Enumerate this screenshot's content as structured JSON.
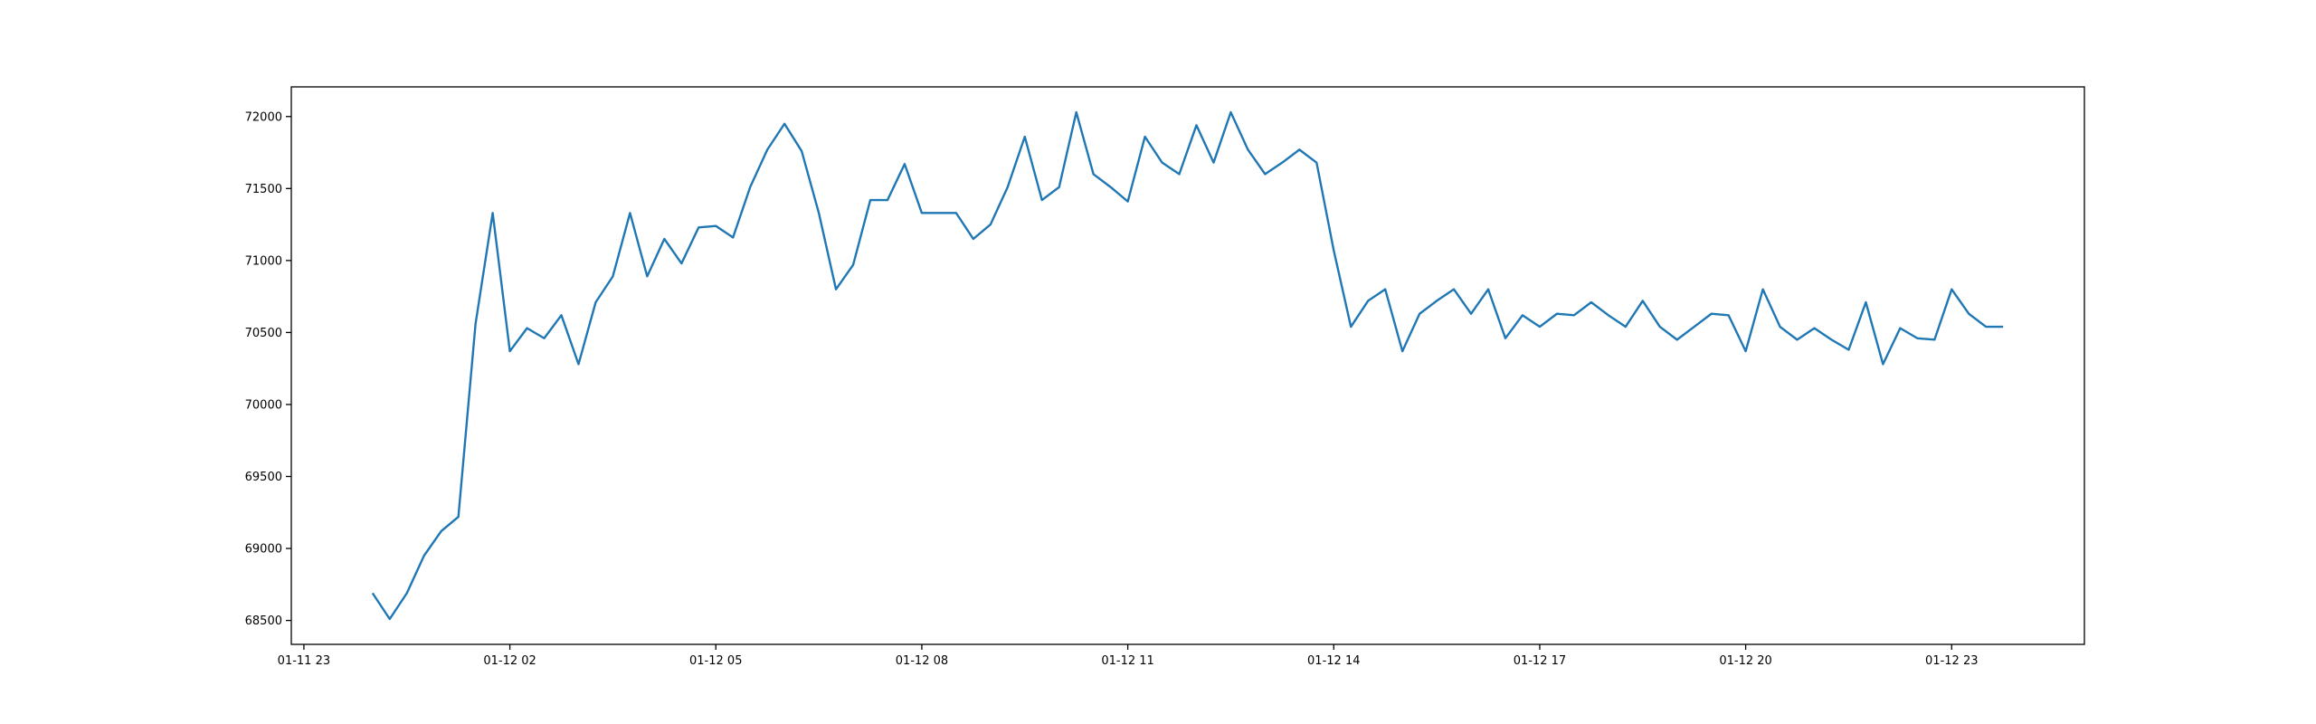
{
  "chart_data": {
    "type": "line",
    "x": [
      "01-12 00:00",
      "01-12 00:15",
      "01-12 00:30",
      "01-12 00:45",
      "01-12 01:00",
      "01-12 01:15",
      "01-12 01:30",
      "01-12 01:45",
      "01-12 02:00",
      "01-12 02:15",
      "01-12 02:30",
      "01-12 02:45",
      "01-12 03:00",
      "01-12 03:15",
      "01-12 03:30",
      "01-12 03:45",
      "01-12 04:00",
      "01-12 04:15",
      "01-12 04:30",
      "01-12 04:45",
      "01-12 05:00",
      "01-12 05:15",
      "01-12 05:30",
      "01-12 05:45",
      "01-12 06:00",
      "01-12 06:15",
      "01-12 06:30",
      "01-12 06:45",
      "01-12 07:00",
      "01-12 07:15",
      "01-12 07:30",
      "01-12 07:45",
      "01-12 08:00",
      "01-12 08:15",
      "01-12 08:30",
      "01-12 08:45",
      "01-12 09:00",
      "01-12 09:15",
      "01-12 09:30",
      "01-12 09:45",
      "01-12 10:00",
      "01-12 10:15",
      "01-12 10:30",
      "01-12 10:45",
      "01-12 11:00",
      "01-12 11:15",
      "01-12 11:30",
      "01-12 11:45",
      "01-12 12:00",
      "01-12 12:15",
      "01-12 12:30",
      "01-12 12:45",
      "01-12 13:00",
      "01-12 13:15",
      "01-12 13:30",
      "01-12 13:45",
      "01-12 14:00",
      "01-12 14:15",
      "01-12 14:30",
      "01-12 14:45",
      "01-12 15:00",
      "01-12 15:15",
      "01-12 15:30",
      "01-12 15:45",
      "01-12 16:00",
      "01-12 16:15",
      "01-12 16:30",
      "01-12 16:45",
      "01-12 17:00",
      "01-12 17:15",
      "01-12 17:30",
      "01-12 17:45",
      "01-12 18:00",
      "01-12 18:15",
      "01-12 18:30",
      "01-12 18:45",
      "01-12 19:00",
      "01-12 19:15",
      "01-12 19:30",
      "01-12 19:45",
      "01-12 20:00",
      "01-12 20:15",
      "01-12 20:30",
      "01-12 20:45",
      "01-12 21:00",
      "01-12 21:15",
      "01-12 21:30",
      "01-12 21:45",
      "01-12 22:00",
      "01-12 22:15",
      "01-12 22:30",
      "01-12 22:45",
      "01-12 23:00",
      "01-12 23:15",
      "01-12 23:30",
      "01-12 23:45"
    ],
    "values": [
      68690,
      68510,
      68690,
      68950,
      69120,
      69220,
      70560,
      71330,
      70370,
      70530,
      70460,
      70620,
      70280,
      70710,
      70890,
      71330,
      70890,
      71150,
      70980,
      71230,
      71240,
      71160,
      71510,
      71770,
      71950,
      71760,
      71330,
      70800,
      70970,
      71420,
      71420,
      71670,
      71330,
      71330,
      71330,
      71150,
      71250,
      71510,
      71860,
      71420,
      71510,
      72030,
      71600,
      71510,
      71410,
      71860,
      71680,
      71600,
      71940,
      71680,
      72030,
      71770,
      71600,
      71680,
      71770,
      71680,
      71070,
      70540,
      70720,
      70800,
      70370,
      70630,
      70720,
      70800,
      70630,
      70800,
      70460,
      70620,
      70540,
      70630,
      70620,
      70710,
      70620,
      70540,
      70720,
      70540,
      70450,
      70540,
      70630,
      70620,
      70370,
      70800,
      70540,
      70450,
      70530,
      70450,
      70380,
      70710,
      70280,
      70530,
      70460,
      70450,
      70800,
      70630,
      70540,
      70540
    ],
    "color": "#1f77b4",
    "xlim": [
      "01-11 22:49",
      "01-13 00:56"
    ],
    "xticks": [
      "01-11 23",
      "01-12 02",
      "01-12 05",
      "01-12 08",
      "01-12 11",
      "01-12 14",
      "01-12 17",
      "01-12 20",
      "01-12 23"
    ],
    "ylim": [
      68334,
      72206
    ],
    "yticks": [
      68500,
      69000,
      69500,
      70000,
      70500,
      71000,
      71500,
      72000
    ],
    "grid": false
  }
}
